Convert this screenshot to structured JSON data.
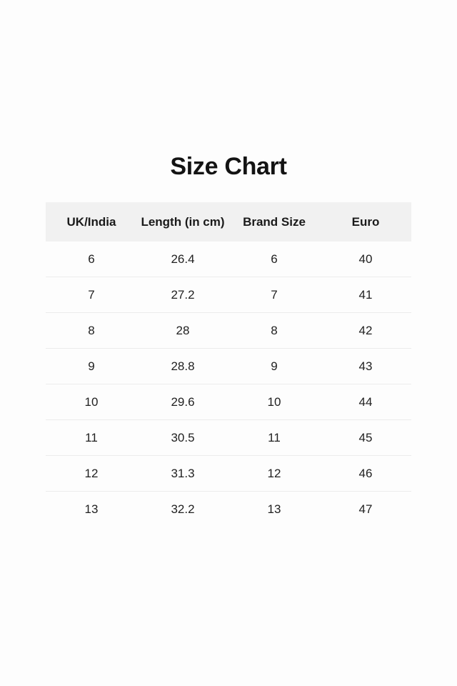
{
  "page": {
    "title": "Size Chart"
  },
  "colors": {
    "page_background": "#fdfdfd",
    "header_background": "#f1f1f1",
    "divider": "#ececec",
    "title_text": "#131313",
    "cell_text": "#212121"
  },
  "chart_data": {
    "type": "table",
    "title": "Size Chart",
    "columns": [
      "UK/India",
      "Length (in cm)",
      "Brand Size",
      "Euro"
    ],
    "rows": [
      [
        "6",
        "26.4",
        "6",
        "40"
      ],
      [
        "7",
        "27.2",
        "7",
        "41"
      ],
      [
        "8",
        "28",
        "8",
        "42"
      ],
      [
        "9",
        "28.8",
        "9",
        "43"
      ],
      [
        "10",
        "29.6",
        "10",
        "44"
      ],
      [
        "11",
        "30.5",
        "11",
        "45"
      ],
      [
        "12",
        "31.3",
        "12",
        "46"
      ],
      [
        "13",
        "32.2",
        "13",
        "47"
      ]
    ]
  }
}
